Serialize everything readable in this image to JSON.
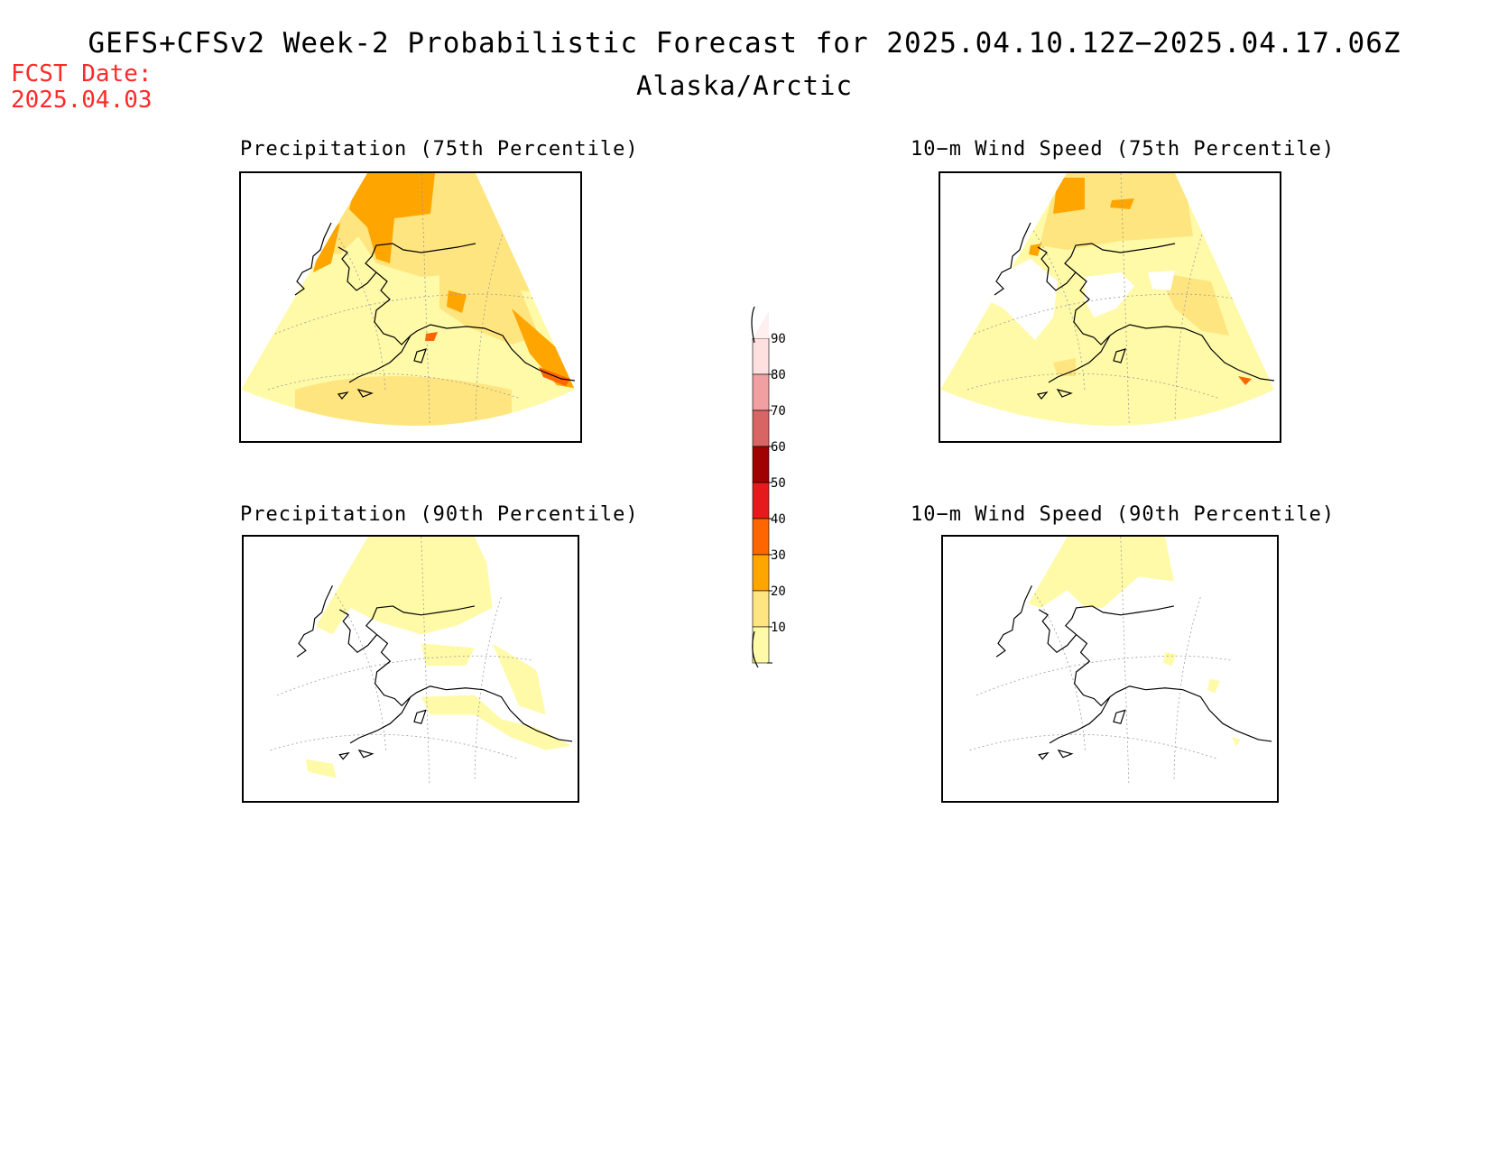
{
  "header": {
    "title": "GEFS+CFSv2 Week-2 Probabilistic Forecast for 2025.04.10.12Z−2025.04.17.06Z",
    "subtitle": "Alaska/Arctic",
    "fcst_date_label": "FCST Date:",
    "fcst_date_value": "2025.04.03"
  },
  "panels": [
    {
      "title": "Precipitation (75th Percentile)",
      "dominant_category": "10-20 with 20-40 areas"
    },
    {
      "title": "10−m Wind Speed (75th Percentile)",
      "dominant_category": "10-20 with 20-40 areas"
    },
    {
      "title": "Precipitation (90th Percentile)",
      "dominant_category": "mostly below 10 with 10-20 areas"
    },
    {
      "title": "10−m Wind Speed (90th Percentile)",
      "dominant_category": "mostly below 10 with 10-20 areas"
    }
  ],
  "colorbar": {
    "labels": [
      "90",
      "80",
      "70",
      "60",
      "50",
      "40",
      "30",
      "20",
      "10"
    ],
    "colors": {
      "10": "#fffaa8",
      "20": "#ffe57f",
      "30": "#ffa500",
      "40": "#ff6600",
      "50": "#e41a1c",
      "60": "#a00000",
      "70": "#d86464",
      "80": "#f0a0a0",
      "90": "#ffe0e0"
    }
  },
  "colors": {
    "title_red": "#ff2a2a",
    "coast": "#000000",
    "grid": "#999999"
  }
}
